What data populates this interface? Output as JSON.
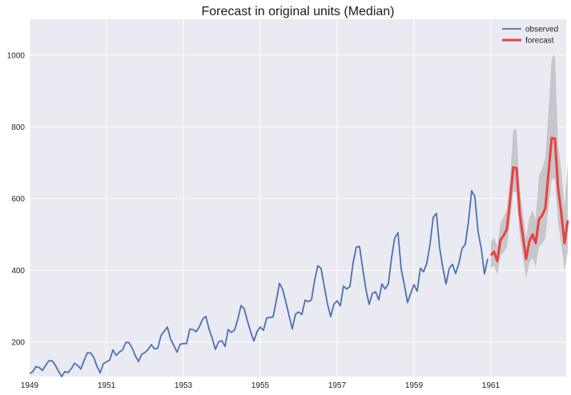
{
  "chart_data": {
    "type": "line",
    "title": "Forecast in original units (Median)",
    "xlabel": "",
    "ylabel": "",
    "xlim": [
      1949.0,
      1962.96
    ],
    "ylim": [
      104,
      1100
    ],
    "xticks": [
      1949,
      1951,
      1953,
      1955,
      1957,
      1959,
      1961
    ],
    "xtick_labels": [
      "1949",
      "1951",
      "1953",
      "1955",
      "1957",
      "1959",
      "1961"
    ],
    "yticks": [
      200,
      400,
      600,
      800,
      1000
    ],
    "ytick_labels": [
      "200",
      "400",
      "600",
      "800",
      "1000"
    ],
    "grid": true,
    "legend": {
      "position": "top-right",
      "entries": [
        "observed",
        "forecast"
      ]
    },
    "colors": {
      "background": "#eaeaf2",
      "grid": "#ffffff",
      "observed": "#4c72b0",
      "forecast": "#e8413e",
      "interval": "#c4c4c8"
    },
    "series": [
      {
        "name": "observed",
        "x_start": "1949-01",
        "x_step": "1 month",
        "values": [
          112,
          118,
          132,
          129,
          121,
          135,
          148,
          148,
          136,
          119,
          104,
          118,
          115,
          126,
          141,
          135,
          125,
          149,
          170,
          170,
          158,
          133,
          114,
          140,
          145,
          150,
          178,
          163,
          172,
          178,
          199,
          199,
          184,
          162,
          146,
          166,
          171,
          180,
          193,
          181,
          183,
          218,
          230,
          242,
          209,
          191,
          172,
          194,
          196,
          196,
          236,
          235,
          229,
          243,
          264,
          272,
          237,
          211,
          180,
          201,
          204,
          188,
          235,
          227,
          234,
          264,
          302,
          293,
          259,
          229,
          203,
          229,
          242,
          233,
          267,
          269,
          270,
          315,
          364,
          347,
          312,
          274,
          237,
          278,
          284,
          277,
          317,
          313,
          318,
          374,
          413,
          405,
          355,
          306,
          271,
          306,
          315,
          301,
          356,
          348,
          355,
          422,
          465,
          467,
          404,
          347,
          305,
          336,
          340,
          318,
          362,
          348,
          363,
          435,
          491,
          505,
          404,
          359,
          310,
          337,
          360,
          342,
          406,
          396,
          420,
          472,
          548,
          559,
          463,
          407,
          362,
          405,
          417,
          391,
          419,
          461,
          472,
          535,
          622,
          606,
          508,
          461,
          390,
          432
        ]
      },
      {
        "name": "forecast",
        "x_start": "1961-01",
        "x_step": "1 month",
        "values": [
          442,
          452,
          426,
          485,
          497,
          515,
          595,
          687,
          685,
          560,
          494,
          432,
          480,
          500,
          476,
          542,
          553,
          573,
          672,
          769,
          767,
          628,
          559,
          476,
          539
        ],
        "lower": [
          407,
          413,
          388,
          440,
          450,
          465,
          537,
          620,
          618,
          498,
          437,
          378,
          420,
          435,
          410,
          466,
          474,
          490,
          575,
          656,
          653,
          532,
          472,
          400,
          452
        ],
        "upper": [
          480,
          492,
          467,
          533,
          548,
          570,
          660,
          791,
          795,
          632,
          559,
          490,
          545,
          568,
          543,
          663,
          683,
          713,
          845,
          990,
          1002,
          752,
          678,
          577,
          700
        ]
      }
    ]
  }
}
